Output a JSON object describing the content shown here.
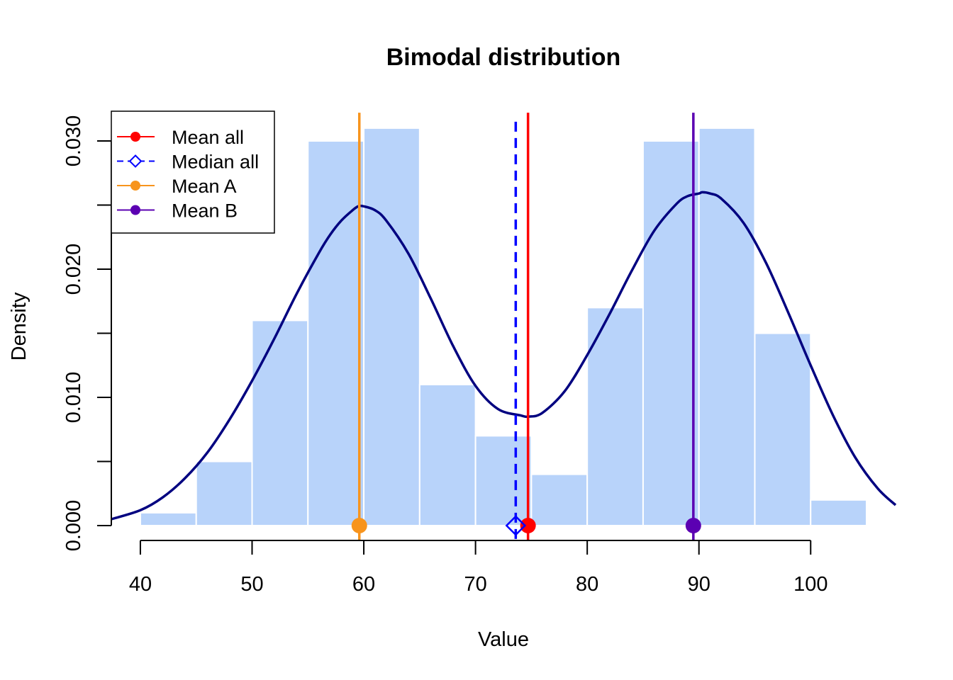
{
  "chart_data": {
    "type": "bar",
    "title": "Bimodal distribution",
    "xlabel": "Value",
    "ylabel": "Density",
    "xlim": [
      37.4,
      107.6
    ],
    "ylim": [
      0,
      0.032
    ],
    "x_ticks": [
      40,
      50,
      60,
      70,
      80,
      90,
      100
    ],
    "x_tick_labels": [
      "40",
      "50",
      "60",
      "70",
      "80",
      "90",
      "100"
    ],
    "y_ticks": [
      0,
      0.005,
      0.01,
      0.015,
      0.02,
      0.025,
      0.03
    ],
    "y_tick_labels": [
      "0.000",
      "",
      "0.010",
      "",
      "0.020",
      "",
      "0.030"
    ],
    "bin_edges": [
      40,
      45,
      50,
      55,
      60,
      65,
      70,
      75,
      80,
      85,
      90,
      95,
      100,
      105
    ],
    "values": [
      0.001,
      0.005,
      0.016,
      0.03,
      0.031,
      0.011,
      0.007,
      0.004,
      0.017,
      0.03,
      0.031,
      0.015,
      0.002
    ],
    "bar_color": "#b8d3fa",
    "density_curve": {
      "color": "#000080",
      "x": [
        37.4,
        40,
        42,
        44,
        46,
        48,
        50,
        52,
        54,
        56,
        57,
        58,
        59,
        59.5,
        60,
        61,
        62,
        64,
        66,
        68,
        70,
        72,
        74,
        74.8,
        76,
        78,
        80,
        82,
        84,
        86,
        88,
        89,
        90,
        90.3,
        91,
        92,
        94,
        96,
        98,
        100,
        102,
        104,
        106,
        107.6
      ],
      "y": [
        0.0005,
        0.0012,
        0.0022,
        0.0037,
        0.0057,
        0.0083,
        0.0113,
        0.0146,
        0.0181,
        0.0213,
        0.0227,
        0.0238,
        0.0246,
        0.0249,
        0.0249,
        0.0246,
        0.0238,
        0.0212,
        0.0177,
        0.014,
        0.0109,
        0.0091,
        0.0086,
        0.0085,
        0.0088,
        0.0105,
        0.0133,
        0.0165,
        0.0199,
        0.023,
        0.0251,
        0.0257,
        0.0259,
        0.026,
        0.0259,
        0.0255,
        0.0236,
        0.0205,
        0.0166,
        0.0125,
        0.0086,
        0.0053,
        0.0029,
        0.0016
      ]
    },
    "reference_lines": [
      {
        "name": "Mean all",
        "x": 74.7,
        "color": "#ff0000",
        "style": "solid",
        "marker": "circle",
        "ytop": 0.0322
      },
      {
        "name": "Median all",
        "x": 73.6,
        "color": "#0000ff",
        "style": "dashed",
        "marker": "diamond",
        "ytop": 0.0315
      },
      {
        "name": "Mean A",
        "x": 59.6,
        "color": "#f7941d",
        "style": "solid",
        "marker": "circle",
        "ytop": 0.0322
      },
      {
        "name": "Mean B",
        "x": 89.5,
        "color": "#5b00b2",
        "style": "solid",
        "marker": "circle",
        "ytop": 0.0322
      }
    ],
    "legend": {
      "position": "top-left",
      "entries": [
        {
          "label": "Mean all",
          "color": "#ff0000",
          "style": "solid",
          "marker": "circle"
        },
        {
          "label": "Median all",
          "color": "#0000ff",
          "style": "dashed",
          "marker": "diamond"
        },
        {
          "label": "Mean A",
          "color": "#f7941d",
          "style": "solid",
          "marker": "circle"
        },
        {
          "label": "Mean B",
          "color": "#5b00b2",
          "style": "solid",
          "marker": "circle"
        }
      ]
    },
    "grid": false
  }
}
